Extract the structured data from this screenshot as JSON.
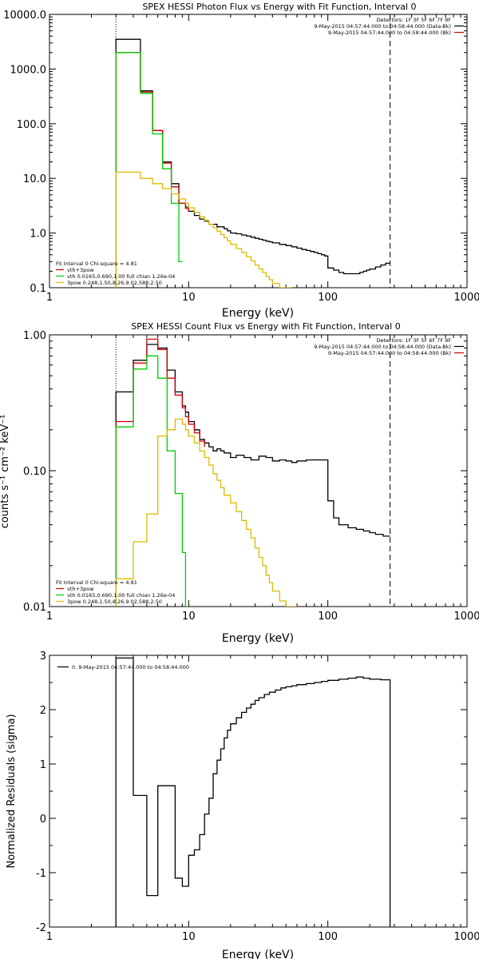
{
  "chart_data": [
    {
      "type": "line",
      "title": "SPEX HESSI Photon Flux vs Energy with Fit Function, Interval 0",
      "xlabel": "Energy (keV)",
      "ylabel": "",
      "xscale": "log",
      "yscale": "log",
      "xlim": [
        1,
        1000
      ],
      "ylim": [
        0.1,
        10000
      ],
      "x_ticks": [
        1,
        10,
        100,
        1000
      ],
      "x_tick_labels": [
        "1",
        "10",
        "100",
        "1000"
      ],
      "y_ticks": [
        0.1,
        1,
        10,
        100,
        1000,
        10000
      ],
      "y_tick_labels": [
        "0.1",
        "1.0",
        "10.0",
        "100.0",
        "1000.0",
        "10000.0"
      ],
      "vlines": [
        {
          "x": 3.0,
          "style": "dotted",
          "color": "#000000"
        },
        {
          "x": 280,
          "style": "dashed",
          "color": "#000000"
        }
      ],
      "legend_top_right": {
        "lines": [
          "Detectors: 1F 3F 5F 6F 7F 9F",
          "9-May-2015 04:57:44.000 to 04:58:44.000 (Data-Bk)",
          "9-May-2015 04:57:44.000 to 04:58:44.000 (Bk)"
        ],
        "colors": [
          "",
          "#000000",
          "#cc0000"
        ]
      },
      "legend_bottom_left": {
        "lines": [
          "Fit Interval 0   Chi-square = 4.81",
          "vth+3pow",
          "vth 0.0165,0.690,1.00  full chian 1.26e-04",
          "3pow 0.248,1.50,8.26,9.02,588,2.50"
        ],
        "colors": [
          "",
          "#cc0000",
          "#00cc00",
          "#ddbb00"
        ]
      },
      "series": [
        {
          "color": "#000000",
          "x": [
            3.0,
            3.5,
            4.0,
            4.5,
            5.0,
            5.5,
            6.0,
            6.5,
            7.0,
            7.5,
            8.0,
            8.5,
            9.0,
            9.5,
            10.0,
            11.0,
            12.0,
            13.0,
            14.0,
            15.0,
            16.0,
            17.0,
            18.0,
            19.0,
            20.0,
            22.0,
            24.0,
            26.0,
            28.0,
            30.0,
            32.0,
            34.0,
            36.0,
            38.0,
            40.0,
            45.0,
            50.0,
            55.0,
            60.0,
            65.0,
            70.0,
            75.0,
            80.0,
            85.0,
            90.0,
            95.0,
            100.0,
            110.0,
            120.0,
            130.0,
            140.0,
            150.0,
            160.0,
            170.0,
            180.0,
            190.0,
            200.0,
            220.0,
            240.0,
            260.0,
            280.0
          ],
          "y": [
            3500,
            3500,
            3500,
            400,
            400,
            75,
            75,
            20,
            20,
            8,
            8,
            3.5,
            3.5,
            3.0,
            2.5,
            2.1,
            1.8,
            1.65,
            1.45,
            1.45,
            1.3,
            1.3,
            1.2,
            1.1,
            1.0,
            0.97,
            0.92,
            0.88,
            0.84,
            0.8,
            0.77,
            0.74,
            0.71,
            0.69,
            0.66,
            0.62,
            0.59,
            0.56,
            0.53,
            0.5,
            0.48,
            0.46,
            0.44,
            0.42,
            0.4,
            0.38,
            0.23,
            0.21,
            0.19,
            0.18,
            0.18,
            0.18,
            0.18,
            0.19,
            0.2,
            0.21,
            0.22,
            0.24,
            0.26,
            0.28,
            0.28
          ]
        },
        {
          "color": "#cc0000",
          "x": [
            3.0,
            3.5,
            4.0,
            4.5,
            5.0,
            5.5,
            6.0,
            6.5,
            7.0,
            7.5,
            8.0,
            8.5,
            9.0,
            9.5,
            10.0
          ],
          "y": [
            2000,
            2000,
            2000,
            380,
            380,
            75,
            75,
            19,
            19,
            7,
            7,
            3.5,
            3.5,
            2.8,
            2.5
          ]
        },
        {
          "color": "#00cc00",
          "x": [
            3.0,
            3.5,
            4.0,
            4.5,
            5.0,
            5.5,
            6.0,
            6.5,
            7.0,
            7.5,
            8.0,
            8.5,
            9.0
          ],
          "y": [
            2000,
            2000,
            2000,
            360,
            360,
            65,
            65,
            15,
            15,
            3.5,
            3.5,
            0.3,
            0.3
          ]
        },
        {
          "color": "#ddbb00",
          "x": [
            3.0,
            3.5,
            4.0,
            4.5,
            5.0,
            5.5,
            6.0,
            6.5,
            7.0,
            7.5,
            8.0,
            8.5,
            9.0,
            9.5,
            10.0,
            11.0,
            12.0,
            13.0,
            14.0,
            15.0,
            16.0,
            17.0,
            18.0,
            19.0,
            20.0,
            22.0,
            24.0,
            26.0,
            28.0,
            30.0,
            32.0,
            34.0,
            36.0,
            38.0,
            40.0,
            45.0,
            50.0,
            55.0
          ],
          "y": [
            13,
            13,
            13,
            10,
            10,
            8,
            8,
            6.5,
            6.5,
            5.2,
            5.2,
            4.2,
            4.2,
            3.5,
            2.9,
            2.4,
            2.0,
            1.7,
            1.45,
            1.25,
            1.08,
            0.94,
            0.82,
            0.72,
            0.62,
            0.52,
            0.44,
            0.37,
            0.31,
            0.26,
            0.22,
            0.19,
            0.16,
            0.14,
            0.12,
            0.1,
            0.1,
            0.1
          ]
        }
      ]
    },
    {
      "type": "line",
      "title": "SPEX HESSI Count Flux vs Energy with Fit Function, Interval 0",
      "xlabel": "Energy (keV)",
      "ylabel": "counts s⁻¹ cm⁻² keV⁻¹",
      "xscale": "log",
      "yscale": "log",
      "xlim": [
        1,
        1000
      ],
      "ylim": [
        0.01,
        1.0
      ],
      "x_ticks": [
        1,
        10,
        100,
        1000
      ],
      "x_tick_labels": [
        "1",
        "10",
        "100",
        "1000"
      ],
      "y_ticks": [
        0.01,
        0.1,
        1.0
      ],
      "y_tick_labels": [
        "0.01",
        "0.10",
        "1.00"
      ],
      "vlines": [
        {
          "x": 3.0,
          "style": "dotted",
          "color": "#000000"
        },
        {
          "x": 280,
          "style": "dashed",
          "color": "#000000"
        }
      ],
      "legend_top_right": {
        "lines": [
          "Detectors: 1F 3F 5F 6F 7F 9F",
          "9-May-2015 04:57:44.000 to 04:58:44.000 (Data-Bk)",
          "9-May-2015 04:57:44.000 to 04:58:44.000 (Bk)"
        ],
        "colors": [
          "",
          "#000000",
          "#cc0000"
        ]
      },
      "legend_bottom_left": {
        "lines": [
          "Fit Interval 0   Chi-square = 4.81",
          "vth+3pow",
          "vth 0.0165,0.690,1.00  full chian 1.26e-04",
          "3pow 0.248,1.50,8.26,9.02,588,2.50"
        ],
        "colors": [
          "",
          "#cc0000",
          "#00cc00",
          "#ddbb00"
        ]
      },
      "series": [
        {
          "color": "#000000",
          "x": [
            3.0,
            3.5,
            4.0,
            4.5,
            5.0,
            5.5,
            6.0,
            6.5,
            7.0,
            7.5,
            8.0,
            8.5,
            9.0,
            9.5,
            10.0,
            11.0,
            12.0,
            13.0,
            14.0,
            15.0,
            16.0,
            17.0,
            18.0,
            20.0,
            22.0,
            25.0,
            28.0,
            32.0,
            36.0,
            40.0,
            45.0,
            50.0,
            55.0,
            60.0,
            70.0,
            80.0,
            90.0,
            100.0,
            110.0,
            120.0,
            140.0,
            160.0,
            180.0,
            200.0,
            220.0,
            250.0,
            280.0
          ],
          "y": [
            0.38,
            0.38,
            0.65,
            0.65,
            0.85,
            0.85,
            0.8,
            0.8,
            0.55,
            0.55,
            0.38,
            0.38,
            0.3,
            0.27,
            0.23,
            0.2,
            0.17,
            0.16,
            0.15,
            0.14,
            0.145,
            0.14,
            0.135,
            0.125,
            0.13,
            0.125,
            0.12,
            0.128,
            0.125,
            0.118,
            0.12,
            0.118,
            0.115,
            0.118,
            0.12,
            0.12,
            0.12,
            0.06,
            0.045,
            0.04,
            0.038,
            0.037,
            0.036,
            0.035,
            0.034,
            0.033,
            0.033
          ]
        },
        {
          "color": "#cc0000",
          "x": [
            3.0,
            3.5,
            4.0,
            4.5,
            5.0,
            5.5,
            6.0,
            6.5,
            7.0,
            7.5,
            8.0,
            8.5,
            9.0,
            9.5,
            10.0,
            11.0,
            12.0,
            13.0
          ],
          "y": [
            0.23,
            0.23,
            0.62,
            0.62,
            0.93,
            0.93,
            0.78,
            0.78,
            0.48,
            0.48,
            0.36,
            0.36,
            0.29,
            0.25,
            0.22,
            0.19,
            0.165,
            0.15
          ]
        },
        {
          "color": "#00cc00",
          "x": [
            3.0,
            3.5,
            4.0,
            4.5,
            5.0,
            5.5,
            6.0,
            6.5,
            7.0,
            7.5,
            8.0,
            8.5,
            9.0,
            9.5,
            10.0
          ],
          "y": [
            0.21,
            0.21,
            0.56,
            0.56,
            0.7,
            0.7,
            0.48,
            0.48,
            0.14,
            0.14,
            0.068,
            0.068,
            0.025,
            0.01,
            0.01
          ]
        },
        {
          "color": "#ddbb00",
          "x": [
            3.0,
            3.5,
            4.0,
            4.5,
            5.0,
            5.5,
            6.0,
            6.5,
            7.0,
            7.5,
            8.0,
            8.5,
            9.0,
            9.5,
            10.0,
            11.0,
            12.0,
            13.0,
            14.0,
            15.0,
            16.0,
            17.0,
            18.0,
            20.0,
            22.0,
            24.0,
            26.0,
            28.0,
            30.0,
            32.0,
            34.0,
            36.0,
            38.0,
            40.0,
            45.0,
            50.0,
            55.0,
            60.0
          ],
          "y": [
            0.016,
            0.016,
            0.03,
            0.03,
            0.048,
            0.048,
            0.18,
            0.18,
            0.2,
            0.2,
            0.24,
            0.24,
            0.22,
            0.2,
            0.18,
            0.16,
            0.14,
            0.125,
            0.11,
            0.095,
            0.085,
            0.075,
            0.066,
            0.058,
            0.05,
            0.043,
            0.037,
            0.032,
            0.027,
            0.023,
            0.02,
            0.017,
            0.015,
            0.013,
            0.011,
            0.01,
            0.01,
            0.01
          ]
        }
      ]
    },
    {
      "type": "line",
      "title": "",
      "xlabel": "Energy (keV)",
      "ylabel": "Normalized Residuals (sigma)",
      "xscale": "log",
      "yscale": "linear",
      "xlim": [
        1,
        1000
      ],
      "ylim": [
        -2,
        3
      ],
      "x_ticks": [
        1,
        10,
        100,
        1000
      ],
      "x_tick_labels": [
        "1",
        "10",
        "100",
        "1000"
      ],
      "y_ticks": [
        -2,
        -1,
        0,
        1,
        2,
        3
      ],
      "y_tick_labels": [
        "-2",
        "-1",
        "0",
        "1",
        "2",
        "3"
      ],
      "legend_top_left": {
        "lines": [
          "0.  9-May-2015 04:57:44.000 to 04:58:44.000"
        ],
        "colors": [
          "#000000"
        ]
      },
      "series": [
        {
          "color": "#000000",
          "x": [
            3.0,
            4.0,
            5.0,
            6.0,
            7.0,
            8.0,
            9.0,
            10.0,
            11.0,
            12.0,
            13.0,
            14.0,
            15.0,
            16.0,
            17.0,
            18.0,
            19.0,
            20.0,
            22.0,
            24.0,
            26.0,
            28.0,
            30.0,
            32.0,
            35.0,
            38.0,
            42.0,
            46.0,
            50.0,
            55.0,
            60.0,
            70.0,
            80.0,
            90.0,
            100.0,
            120.0,
            140.0,
            160.0,
            180.0,
            200.0,
            240.0,
            280.0
          ],
          "y": [
            2.95,
            0.42,
            -1.42,
            0.6,
            0.6,
            -1.1,
            -1.25,
            -0.68,
            -0.58,
            -0.3,
            0.08,
            0.37,
            0.82,
            1.07,
            1.28,
            1.48,
            1.62,
            1.74,
            1.85,
            1.95,
            2.03,
            2.1,
            2.17,
            2.22,
            2.28,
            2.32,
            2.36,
            2.4,
            2.42,
            2.44,
            2.46,
            2.48,
            2.5,
            2.52,
            2.54,
            2.56,
            2.58,
            2.6,
            2.58,
            2.56,
            2.55,
            2.55
          ]
        }
      ]
    }
  ]
}
